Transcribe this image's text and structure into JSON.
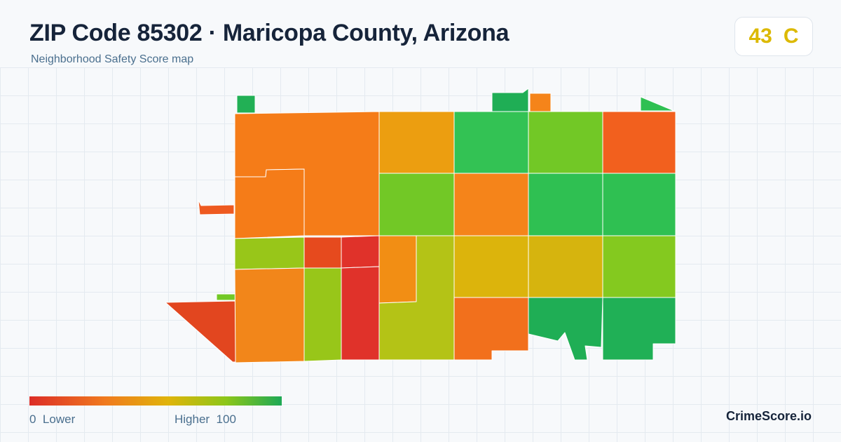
{
  "header": {
    "title": "ZIP Code 85302 · Maricopa County, Arizona",
    "subtitle": "Neighborhood Safety Score map"
  },
  "score": {
    "value": "43",
    "grade": "C",
    "color": "#dcb900"
  },
  "legend": {
    "min_value": "0",
    "min_label": "Lower",
    "max_label": "Higher",
    "max_value": "100",
    "colors": [
      "#dc2d27",
      "#f07a1e",
      "#e0b40a",
      "#8cc619",
      "#1ea955"
    ]
  },
  "brand": "CrimeScore.io",
  "map": {
    "regions": [
      {
        "name": "region-nw-large",
        "color": "#f57c18"
      },
      {
        "name": "region-w-mid",
        "color": "#f57c18"
      },
      {
        "name": "region-c-tall",
        "color": "#f57c18"
      },
      {
        "name": "region-r1c3",
        "color": "#ec9e10"
      },
      {
        "name": "region-r1c4",
        "color": "#33c254"
      },
      {
        "name": "region-r1c5",
        "color": "#72c826"
      },
      {
        "name": "region-r1c6",
        "color": "#f2601e"
      },
      {
        "name": "region-r2c3",
        "color": "#72c826"
      },
      {
        "name": "region-r2c4",
        "color": "#f5841a"
      },
      {
        "name": "region-r2c5",
        "color": "#2fc052"
      },
      {
        "name": "region-r2c6",
        "color": "#2fc052"
      },
      {
        "name": "region-r3c1",
        "color": "#98c619"
      },
      {
        "name": "region-r3c2a",
        "color": "#e64a1e"
      },
      {
        "name": "region-r3c2b",
        "color": "#e0322a"
      },
      {
        "name": "region-r3c3a",
        "color": "#f28e14"
      },
      {
        "name": "region-r3c3b",
        "color": "#b4c316"
      },
      {
        "name": "region-r3c4",
        "color": "#dcb40c"
      },
      {
        "name": "region-r3c5",
        "color": "#d6b40e"
      },
      {
        "name": "region-r3c6",
        "color": "#84c91f"
      },
      {
        "name": "region-r4c1",
        "color": "#f2861a"
      },
      {
        "name": "region-r4c2a",
        "color": "#98c619"
      },
      {
        "name": "region-r4c2b",
        "color": "#e0322a"
      },
      {
        "name": "region-r4c4",
        "color": "#f2701c"
      },
      {
        "name": "region-r4c5",
        "color": "#1fae55"
      },
      {
        "name": "region-r4c6",
        "color": "#20b056"
      },
      {
        "name": "region-sw-triangle",
        "color": "#e2461f"
      },
      {
        "name": "region-w-spur",
        "color": "#ee5a20"
      },
      {
        "name": "fragment-top-left",
        "color": "#22b055"
      },
      {
        "name": "fragment-top-mid-green",
        "color": "#1fae55"
      },
      {
        "name": "fragment-top-mid-orange",
        "color": "#f5841a"
      },
      {
        "name": "fragment-top-right",
        "color": "#2fc052"
      },
      {
        "name": "fragment-sw-green",
        "color": "#72c826"
      }
    ]
  }
}
